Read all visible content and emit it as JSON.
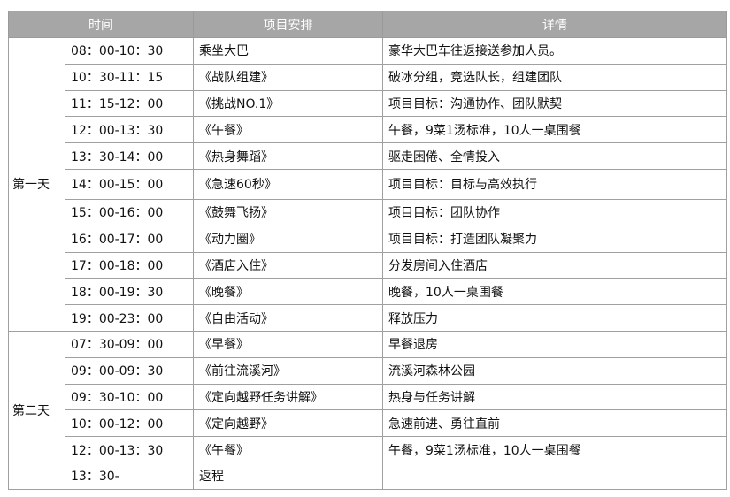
{
  "header": {
    "time": "时间",
    "project": "项目安排",
    "detail": "详情"
  },
  "days": [
    {
      "label": "第一天",
      "rows": [
        {
          "time": "08：00-10：30",
          "project": "乘坐大巴",
          "detail": "豪华大巴车往返接送参加人员。"
        },
        {
          "time": "10：30-11：15",
          "project": "《战队组建》",
          "detail": "破冰分组，竞选队长，组建团队"
        },
        {
          "time": "11：15-12：00",
          "project": "《挑战NO.1》",
          "detail": "项目目标：沟通协作、团队默契"
        },
        {
          "time": "12：00-13：30",
          "project": "《午餐》",
          "detail": "午餐，9菜1汤标准，10人一桌围餐"
        },
        {
          "time": "13：30-14：00",
          "project": "《热身舞蹈》",
          "detail": "驱走困倦、全情投入"
        },
        {
          "time": "14：00-15：00",
          "project": "《急速60秒》",
          "detail": "项目目标：目标与高效执行"
        },
        {
          "time": "15：00-16：00",
          "project": "《鼓舞飞扬》",
          "detail": "项目目标：团队协作"
        },
        {
          "time": "16：00-17：00",
          "project": "《动力圈》",
          "detail": "项目目标：打造团队凝聚力"
        },
        {
          "time": "17：00-18：00",
          "project": "《酒店入住》",
          "detail": "分发房间入住酒店"
        },
        {
          "time": "18：00-19：30",
          "project": "《晚餐》",
          "detail": "晚餐，10人一桌围餐"
        },
        {
          "time": "19：00-23：00",
          "project": "《自由活动》",
          "detail": "释放压力"
        }
      ]
    },
    {
      "label": "第二天",
      "rows": [
        {
          "time": "07：30-09：00",
          "project": "《早餐》",
          "detail": "早餐退房"
        },
        {
          "time": "09：00-09：30",
          "project": "《前往流溪河》",
          "detail": "流溪河森林公园"
        },
        {
          "time": "09：30-10：00",
          "project": "《定向越野任务讲解》",
          "detail": "热身与任务讲解"
        },
        {
          "time": "10：00-12：00",
          "project": "《定向越野》",
          "detail": "急速前进、勇往直前"
        },
        {
          "time": "12：00-13：30",
          "project": "《午餐》",
          "detail": "午餐，9菜1汤标准，10人一桌围餐"
        },
        {
          "time": "13：30-",
          "project": "返程",
          "detail": ""
        }
      ]
    }
  ]
}
